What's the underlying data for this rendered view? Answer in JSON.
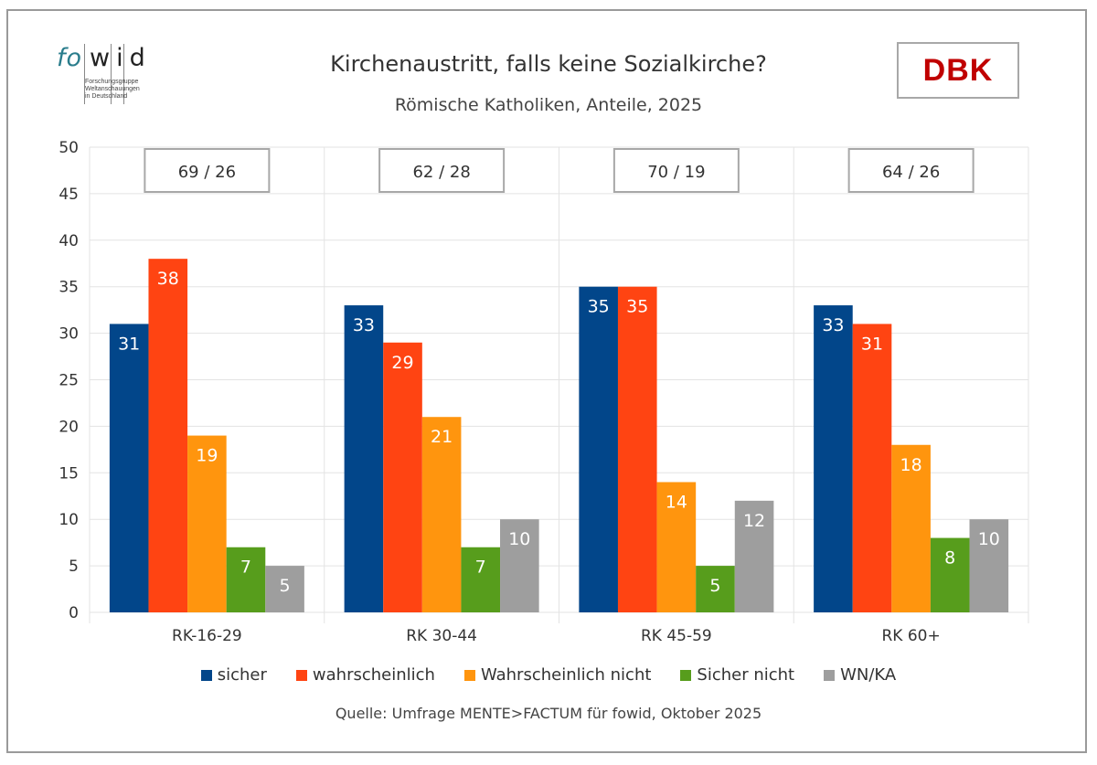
{
  "header": {
    "title": "Kirchenaustritt, falls keine Sozialkirche?",
    "subtitle": "Römische Katholiken, Anteile, 2025",
    "logo_left": {
      "part1": "fo",
      "part2": "wid",
      "lines": [
        "Forschungsgruppe",
        "Weltanschauungen",
        "in Deutschland"
      ]
    },
    "logo_right": "DBK"
  },
  "source": "Quelle: Umfrage MENTE>FACTUM für fowid, Oktober 2025",
  "chart_data": {
    "type": "bar",
    "title": "Kirchenaustritt, falls keine Sozialkirche?",
    "subtitle": "Römische Katholiken, Anteile, 2025",
    "xlabel": "",
    "ylabel": "",
    "ylim": [
      0,
      50
    ],
    "yticks": [
      0,
      5,
      10,
      15,
      20,
      25,
      30,
      35,
      40,
      45,
      50
    ],
    "grid": true,
    "legend_position": "bottom",
    "categories": [
      "RK-16-29",
      "RK 30-44",
      "RK 45-59",
      "RK 60+"
    ],
    "annotations": [
      "69 / 26",
      "62 / 28",
      "70 / 19",
      "64 / 26"
    ],
    "series": [
      {
        "name": "sicher",
        "color": "#02468a",
        "values": [
          31,
          33,
          35,
          33
        ]
      },
      {
        "name": "wahrscheinlich",
        "color": "#ff4412",
        "values": [
          38,
          29,
          35,
          31
        ]
      },
      {
        "name": "Wahrscheinlich nicht",
        "color": "#ff950e",
        "values": [
          19,
          21,
          14,
          18
        ]
      },
      {
        "name": "Sicher nicht",
        "color": "#579d1c",
        "values": [
          7,
          7,
          5,
          8
        ]
      },
      {
        "name": "WN/KA",
        "color": "#9e9e9e",
        "values": [
          5,
          10,
          12,
          10
        ]
      }
    ]
  }
}
